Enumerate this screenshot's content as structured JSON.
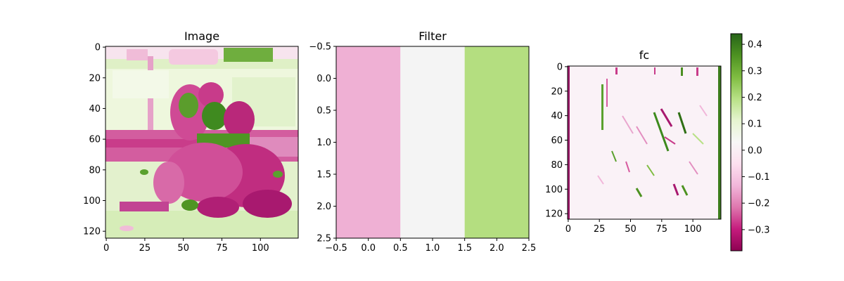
{
  "chart_data": [
    {
      "type": "heatmap",
      "title": "Image",
      "x_ticks": [
        "0",
        "25",
        "50",
        "75",
        "100"
      ],
      "x_tick_values": [
        0,
        25,
        50,
        75,
        100
      ],
      "y_ticks": [
        "0",
        "20",
        "40",
        "60",
        "80",
        "100",
        "120"
      ],
      "y_tick_values": [
        0,
        20,
        40,
        60,
        80,
        100,
        120
      ],
      "xlim": [
        -0.5,
        124.5
      ],
      "ylim": [
        124.5,
        -0.5
      ],
      "colormap": "PiYG"
    },
    {
      "type": "heatmap",
      "title": "Filter",
      "x_ticks": [
        "−0.5",
        "0.0",
        "0.5",
        "1.0",
        "1.5",
        "2.0",
        "2.5"
      ],
      "x_tick_values": [
        -0.5,
        0.0,
        0.5,
        1.0,
        1.5,
        2.0,
        2.5
      ],
      "y_ticks": [
        "−0.5",
        "0.0",
        "0.5",
        "1.0",
        "1.5",
        "2.0",
        "2.5"
      ],
      "y_tick_values": [
        -0.5,
        0.0,
        0.5,
        1.0,
        1.5,
        2.0,
        2.5
      ],
      "xlim": [
        -0.5,
        2.5
      ],
      "ylim": [
        2.5,
        -0.5
      ],
      "columns": [
        {
          "x": 0,
          "color": "#efb0d4"
        },
        {
          "x": 1,
          "color": "#f4f4f4"
        },
        {
          "x": 2,
          "color": "#b4de80"
        }
      ],
      "colormap": "PiYG"
    },
    {
      "type": "heatmap",
      "title": "fc",
      "x_ticks": [
        "0",
        "25",
        "50",
        "75",
        "100"
      ],
      "x_tick_values": [
        0,
        25,
        50,
        75,
        100
      ],
      "y_ticks": [
        "0",
        "20",
        "40",
        "60",
        "80",
        "100",
        "120"
      ],
      "y_tick_values": [
        0,
        20,
        40,
        60,
        80,
        100,
        120
      ],
      "xlim": [
        -0.5,
        122.5
      ],
      "ylim": [
        124.5,
        -0.5
      ],
      "colormap": "PiYG",
      "colorbar": {
        "ticks": [
          "0.4",
          "0.3",
          "0.2",
          "0.1",
          "0.0",
          "−0.1",
          "−0.2",
          "−0.3"
        ],
        "tick_values": [
          0.4,
          0.3,
          0.2,
          0.1,
          0.0,
          -0.1,
          -0.2,
          -0.3
        ],
        "vmin": -0.38,
        "vmax": 0.44,
        "stops": [
          "#8e0152",
          "#c51b7d",
          "#de77ae",
          "#f1b6da",
          "#fde0ef",
          "#f7f7f7",
          "#e6f5d0",
          "#b8e186",
          "#7fbc41",
          "#4d9221",
          "#276419"
        ]
      }
    }
  ]
}
